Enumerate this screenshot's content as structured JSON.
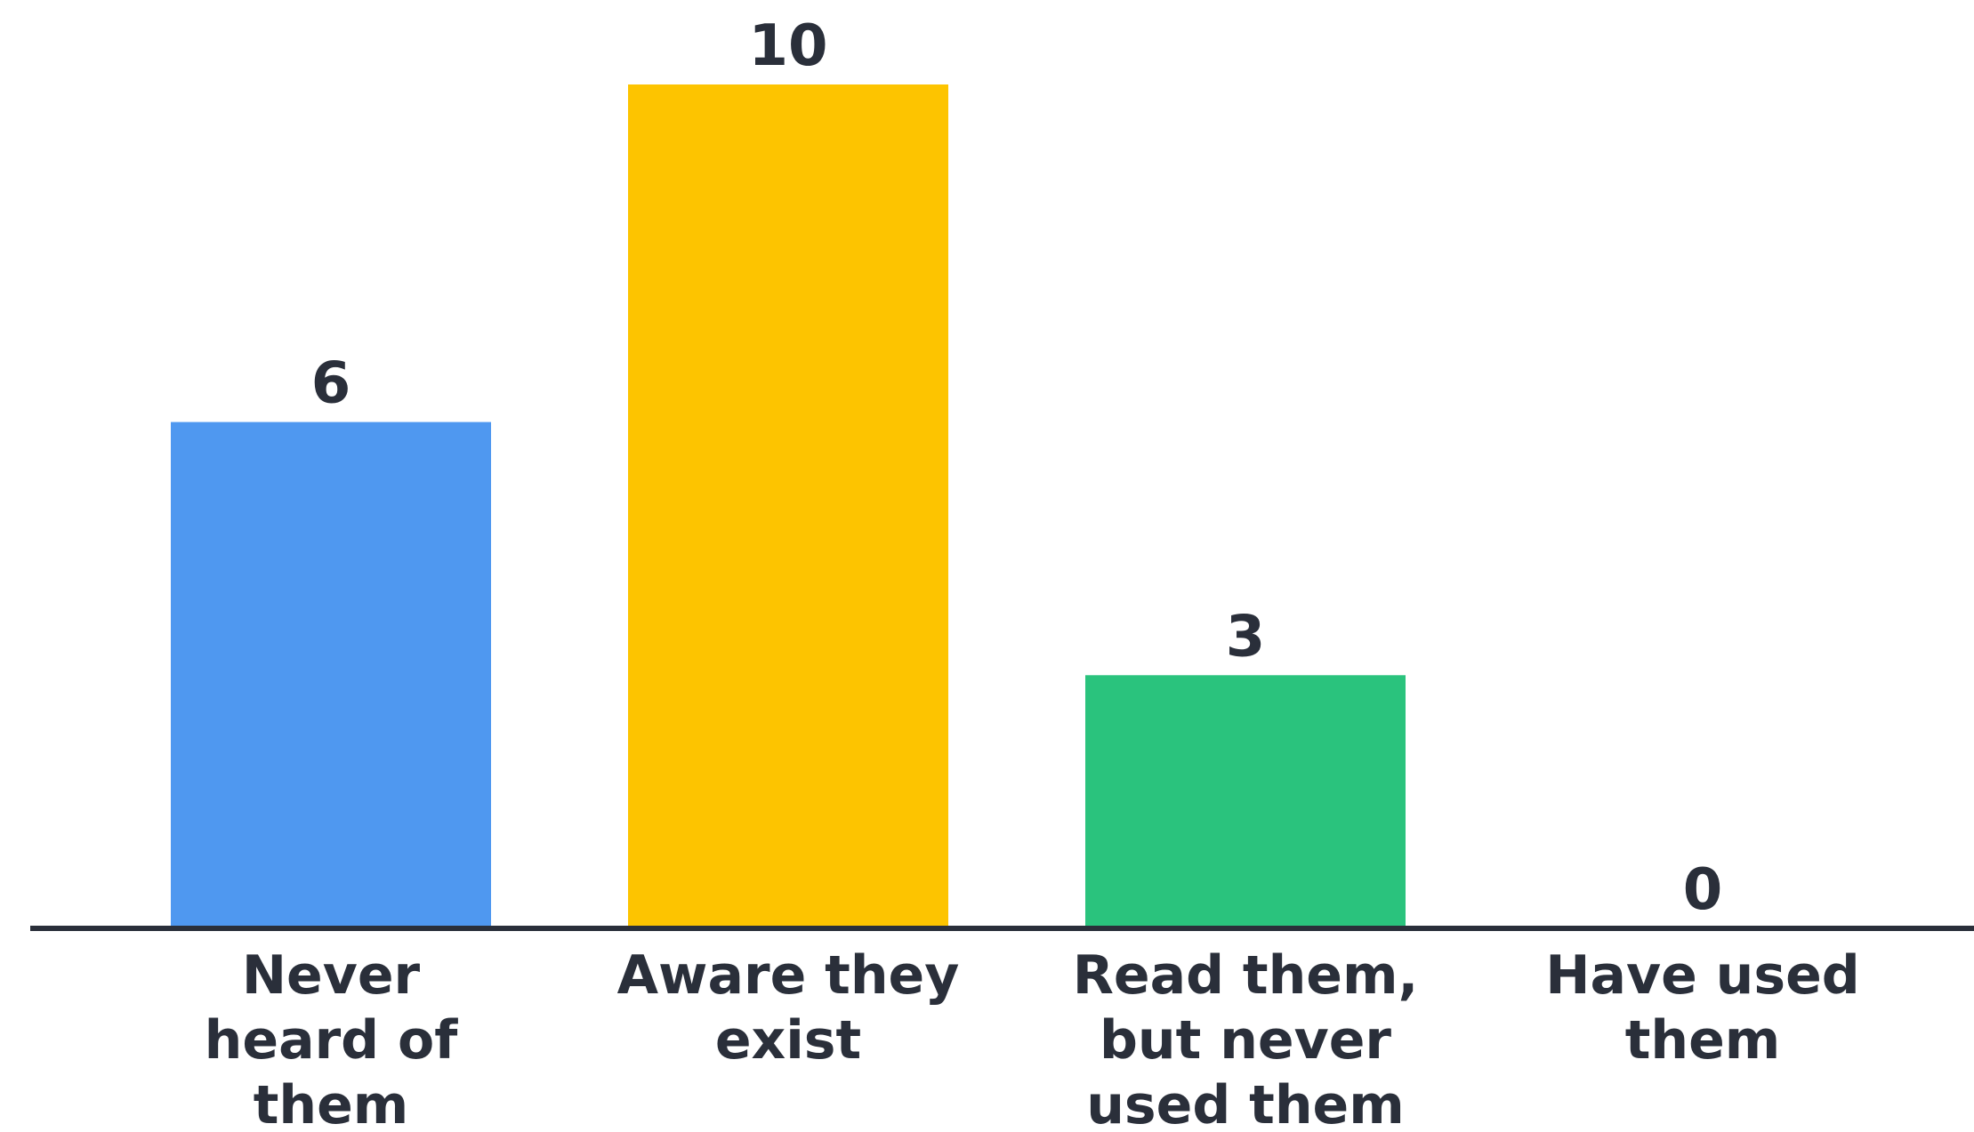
{
  "chart_data": {
    "type": "bar",
    "categories": [
      "Never heard of them",
      "Aware they exist",
      "Read them, but never used them",
      "Have used them"
    ],
    "category_lines": [
      [
        "Never",
        "heard of",
        "them"
      ],
      [
        "Aware they",
        "exist"
      ],
      [
        "Read them,",
        "but never",
        "used them"
      ],
      [
        "Have used",
        "them"
      ]
    ],
    "values": [
      6,
      10,
      3,
      0
    ],
    "value_labels": [
      "6",
      "10",
      "3",
      "0"
    ],
    "colors": [
      "#4f98f0",
      "#fdc400",
      "#2ac37d",
      "#2ac37d"
    ],
    "axis_color": "#2a2f3a",
    "title": "",
    "xlabel": "",
    "ylabel": "",
    "ylim": [
      0,
      10
    ],
    "grid": false,
    "legend": "none",
    "data_labels": true
  }
}
